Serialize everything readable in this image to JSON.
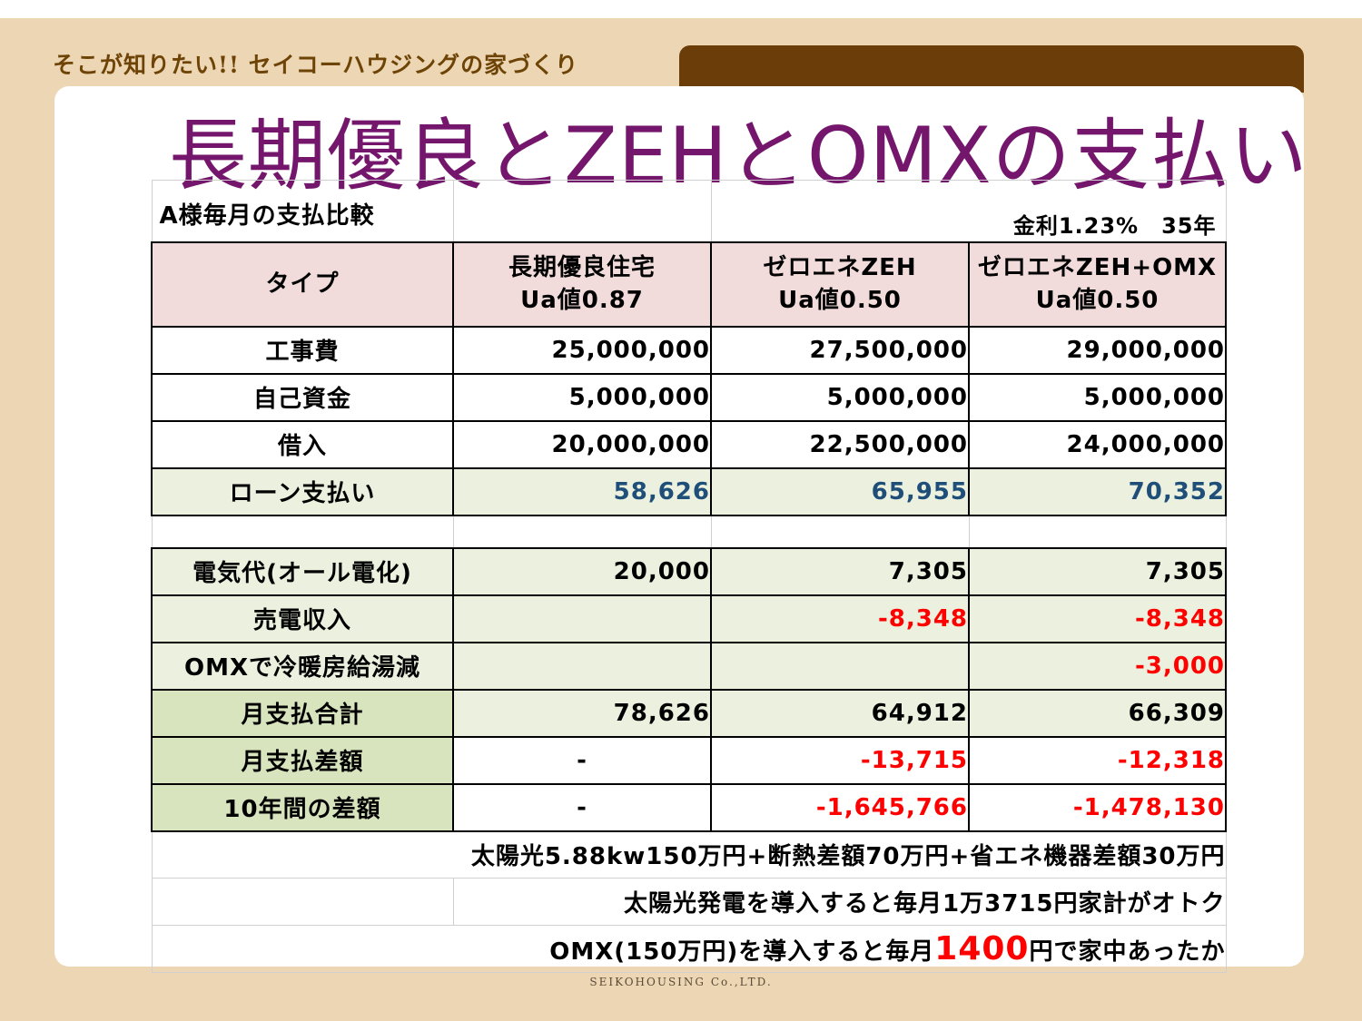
{
  "header": {
    "brand": "そこが知りたい!! セイコーハウジングの家づくり",
    "title": "長期優良とZEHとOMXの支払い",
    "footer": "SEIKOHOUSING Co.,LTD."
  },
  "table": {
    "caption": "A様毎月の支払比較",
    "rate_note": "金利1.23%　35年",
    "columns": {
      "type_label": "タイプ",
      "col1": [
        "長期優良住宅",
        "Ua値0.87"
      ],
      "col2": [
        "ゼロエネZEH",
        "Ua値0.50"
      ],
      "col3": [
        "ゼロエネZEH+OMX",
        "Ua値0.50"
      ]
    },
    "rows": {
      "construction": {
        "label": "工事費",
        "v1": "25,000,000",
        "v2": "27,500,000",
        "v3": "29,000,000"
      },
      "own_funds": {
        "label": "自己資金",
        "v1": "5,000,000",
        "v2": "5,000,000",
        "v3": "5,000,000"
      },
      "loan": {
        "label": "借入",
        "v1": "20,000,000",
        "v2": "22,500,000",
        "v3": "24,000,000"
      },
      "loan_payment": {
        "label": "ローン支払い",
        "v1": "58,626",
        "v2": "65,955",
        "v3": "70,352"
      },
      "electricity": {
        "label": "電気代(オール電化)",
        "v1": "20,000",
        "v2": "7,305",
        "v3": "7,305"
      },
      "power_sale": {
        "label": "売電収入",
        "v1": "",
        "v2": "-8,348",
        "v3": "-8,348"
      },
      "omx_saving": {
        "label": "OMXで冷暖房給湯減",
        "v1": "",
        "v2": "",
        "v3": "-3,000"
      },
      "monthly_total": {
        "label": "月支払合計",
        "v1": "78,626",
        "v2": "64,912",
        "v3": "66,309"
      },
      "monthly_diff": {
        "label": "月支払差額",
        "v1": "-",
        "v2": "-13,715",
        "v3": "-12,318"
      },
      "ten_year_diff": {
        "label": "10年間の差額",
        "v1": "-",
        "v2": "-1,645,766",
        "v3": "-1,478,130"
      }
    },
    "notes": {
      "line1": "太陽光5.88kw150万円+断熱差額70万円+省エネ機器差額30万円",
      "line2": "太陽光発電を導入すると毎月1万3715円家計がオトク",
      "line3_pre": "OMX(150万円)を導入すると毎月",
      "line3_num": "1400",
      "line3_post": "円で家中あったか"
    }
  }
}
